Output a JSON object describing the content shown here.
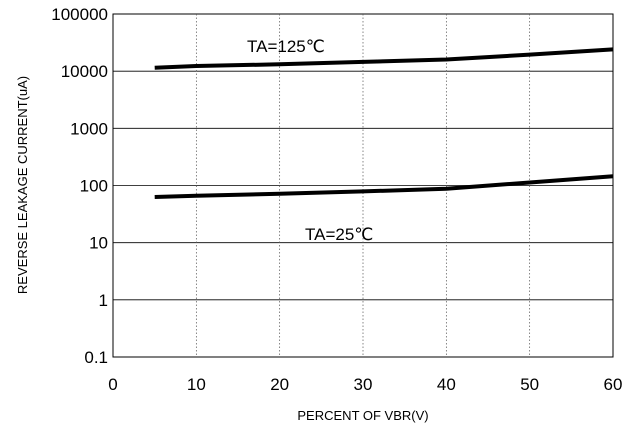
{
  "chart_data": {
    "type": "line",
    "title": "",
    "xlabel": "PERCENT OF VBR(V)",
    "ylabel": "REVERSE LEAKAGE CURRENT(uA)",
    "xlim": [
      0,
      60
    ],
    "ylim": [
      0.1,
      100000
    ],
    "y_scale": "log",
    "grid": true,
    "x_ticks": [
      0,
      10,
      20,
      30,
      40,
      50,
      60
    ],
    "y_ticks": [
      0.1,
      1,
      10,
      100,
      1000,
      10000,
      100000
    ],
    "x_tick_labels": [
      "0",
      "10",
      "20",
      "30",
      "40",
      "50",
      "60"
    ],
    "y_tick_labels": [
      "0.1",
      "1",
      "10",
      "100",
      "1000",
      "10000",
      "100000"
    ],
    "series": [
      {
        "name": "TA=125℃",
        "color": "#000000",
        "x": [
          5,
          10,
          20,
          30,
          40,
          50,
          60
        ],
        "y": [
          11500,
          12300,
          13200,
          14500,
          16000,
          19500,
          24000
        ]
      },
      {
        "name": "TA=25℃",
        "color": "#000000",
        "x": [
          5,
          10,
          20,
          30,
          40,
          50,
          60
        ],
        "y": [
          63,
          66,
          72,
          79,
          88,
          113,
          145
        ]
      }
    ]
  }
}
